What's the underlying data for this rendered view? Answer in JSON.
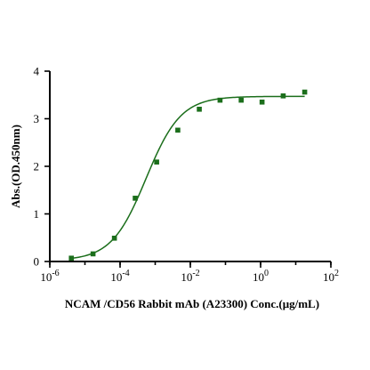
{
  "chart_data": {
    "type": "scatter",
    "xlabel": "NCAM /CD56 Rabbit mAb (A23300) Conc.(μg/mL)",
    "ylabel": "Abs.(OD.450nm)",
    "xscale": "log",
    "xlim": [
      1e-06,
      100
    ],
    "ylim": [
      0,
      4
    ],
    "x_ticks": [
      {
        "base": "10",
        "exp": "-6"
      },
      {
        "base": "10",
        "exp": "-4"
      },
      {
        "base": "10",
        "exp": "-2"
      },
      {
        "base": "10",
        "exp": "0"
      },
      {
        "base": "10",
        "exp": "2"
      }
    ],
    "y_ticks": [
      "0",
      "1",
      "2",
      "3",
      "4"
    ],
    "grid": false,
    "legend": "none",
    "series": [
      {
        "x": [
          4.1e-06,
          1.7e-05,
          6.9e-05,
          0.00027,
          0.0011,
          0.0044,
          0.018,
          0.07,
          0.28,
          1.1,
          4.4,
          18
        ],
        "y": [
          0.07,
          0.16,
          0.49,
          1.33,
          2.09,
          2.76,
          3.2,
          3.39,
          3.39,
          3.35,
          3.48,
          3.56
        ],
        "color": "#1b6e1b",
        "marker": "square"
      }
    ],
    "fit_curve": {
      "model": "4PL",
      "bottom": 0.02,
      "top": 3.47,
      "ec50": 0.00055,
      "hill": 0.88,
      "color": "#1b6e1b"
    }
  }
}
